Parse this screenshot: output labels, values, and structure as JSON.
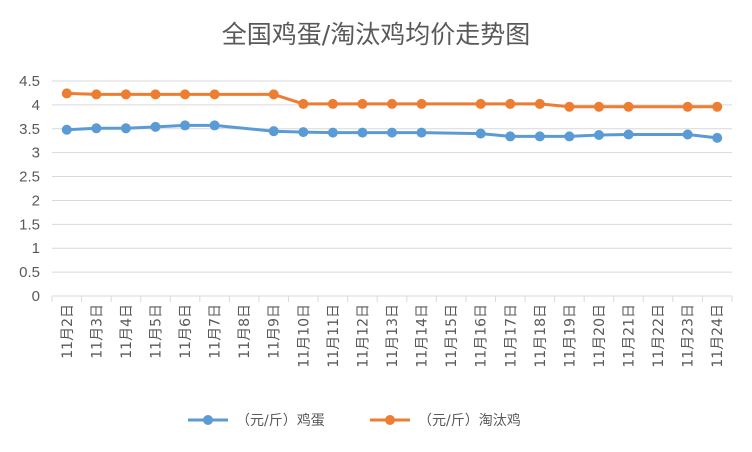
{
  "chart_data": {
    "type": "line",
    "title": "全国鸡蛋/淘汰鸡均价走势图",
    "categories": [
      "11月2日",
      "11月3日",
      "11月4日",
      "11月5日",
      "11月6日",
      "11月7日",
      "11月8日",
      "11月9日",
      "11月10日",
      "11月11日",
      "11月12日",
      "11月13日",
      "11月14日",
      "11月15日",
      "11月16日",
      "11月17日",
      "11月18日",
      "11月19日",
      "11月20日",
      "11月21日",
      "11月22日",
      "11月23日",
      "11月24日"
    ],
    "yticks": [
      "0",
      "0.5",
      "1",
      "1.5",
      "2",
      "2.5",
      "3",
      "3.5",
      "4",
      "4.5"
    ],
    "ylim": [
      0,
      4.5
    ],
    "grid": true,
    "legend_position": "bottom",
    "series": [
      {
        "name": "（元/斤）鸡蛋",
        "color": "#5b9bd5",
        "values": [
          3.48,
          3.51,
          3.51,
          3.54,
          3.57,
          3.57,
          null,
          3.45,
          3.43,
          3.42,
          3.42,
          3.42,
          3.42,
          null,
          3.4,
          3.34,
          3.34,
          3.34,
          3.37,
          3.38,
          null,
          3.38,
          3.31
        ]
      },
      {
        "name": "（元/斤）淘汰鸡",
        "color": "#ed7d31",
        "values": [
          4.24,
          4.22,
          4.22,
          4.22,
          4.22,
          4.22,
          null,
          4.22,
          4.02,
          4.02,
          4.02,
          4.02,
          4.02,
          null,
          4.02,
          4.02,
          4.02,
          3.96,
          3.96,
          3.96,
          null,
          3.96,
          3.96
        ]
      }
    ]
  }
}
